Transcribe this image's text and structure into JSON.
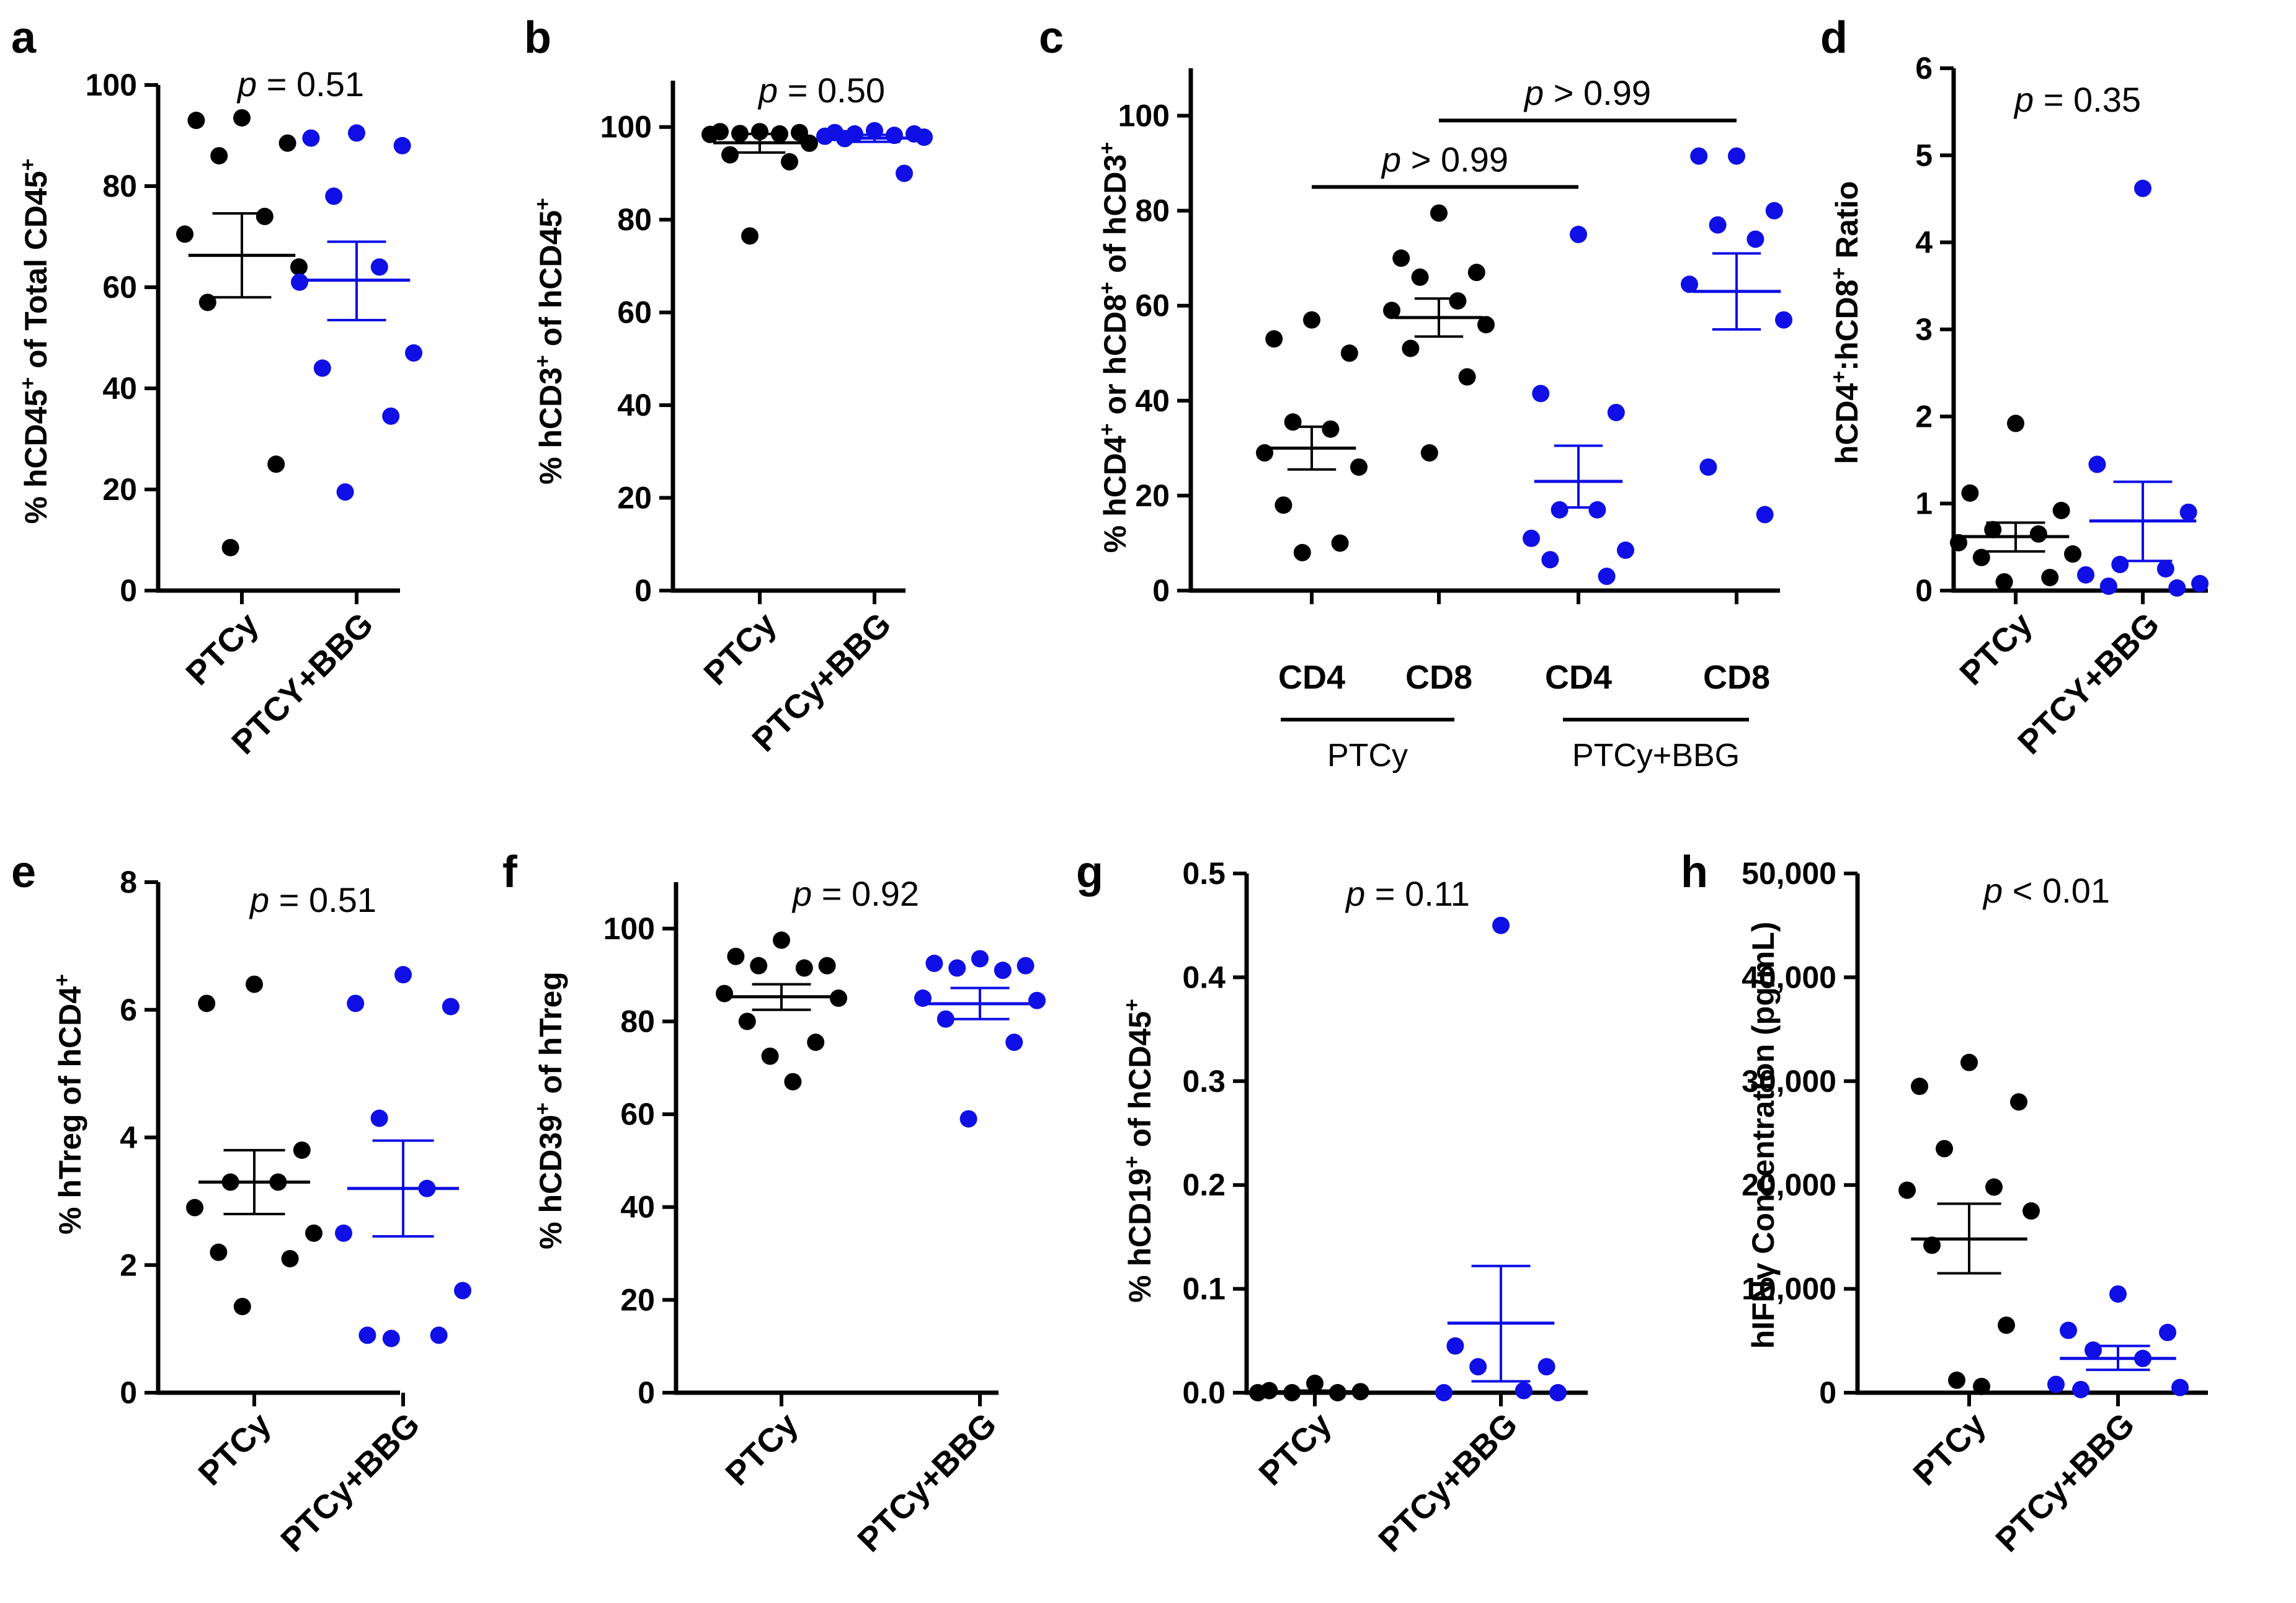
{
  "figure": {
    "background": "#ffffff"
  },
  "colors": {
    "ptcy": "#000000",
    "bbg": "#0f0fe6"
  },
  "chart_data": [
    {
      "panel": "a",
      "type": "scatter",
      "ylabel": "% hCD45",
      "ylabel_sup": "+",
      "ylabel_rest": " of Total CD45",
      "ylabel_sup2": "+",
      "ylim": [
        0,
        100
      ],
      "yticks": [
        0,
        20,
        40,
        60,
        80,
        100
      ],
      "categories": [
        "PTCy",
        "PTCY+BBG"
      ],
      "pvalue_label": "p",
      "pvalue_text": " = 0.51",
      "series": [
        {
          "name": "PTCy",
          "color": "#000000",
          "mean": 66.3,
          "sem_low": 58.0,
          "sem_high": 74.6,
          "values": [
            93.5,
            93.0,
            88.5,
            86.0,
            74.0,
            70.5,
            64.0,
            57.0,
            25.0,
            8.5
          ]
        },
        {
          "name": "PTCY+BBG",
          "color": "#0f0fe6",
          "mean": 61.4,
          "sem_low": 53.5,
          "sem_high": 69.0,
          "values": [
            90.5,
            89.5,
            88.0,
            78.0,
            64.0,
            61.0,
            47.0,
            44.0,
            34.5,
            19.5
          ]
        }
      ]
    },
    {
      "panel": "b",
      "type": "scatter",
      "ylabel": "% hCD3",
      "ylabel_sup": "+",
      "ylabel_rest": " of hCD45",
      "ylabel_sup2": "+",
      "ylim": [
        0,
        110
      ],
      "yticks": [
        0,
        20,
        40,
        60,
        80,
        100
      ],
      "categories": [
        "PTCy",
        "PTCy+BBG"
      ],
      "pvalue_label": "p",
      "pvalue_text": " = 0.50",
      "series": [
        {
          "name": "PTCy",
          "color": "#000000",
          "mean": 96.6,
          "sem_low": 94.5,
          "sem_high": 98.5,
          "values": [
            99.0,
            99.0,
            98.8,
            98.6,
            98.5,
            98.4,
            96.5,
            94.0,
            92.5,
            76.5
          ]
        },
        {
          "name": "PTCy+BBG",
          "color": "#0f0fe6",
          "mean": 97.6,
          "sem_low": 96.8,
          "sem_high": 98.3,
          "values": [
            99.2,
            98.8,
            98.5,
            98.5,
            98.2,
            98.0,
            97.8,
            97.5,
            90.0
          ]
        }
      ]
    },
    {
      "panel": "c",
      "type": "scatter",
      "ylabel": "% hCD4",
      "ylabel_sup": "+",
      "ylabel_rest": " or hCD8",
      "ylabel_sup2": "+",
      "ylabel_rest2": " of hCD3",
      "ylabel_sup3": "+",
      "ylim": [
        0,
        110
      ],
      "yticks": [
        0,
        20,
        40,
        60,
        80,
        100
      ],
      "categories": [
        "CD4",
        "CD8",
        "CD4",
        "CD8"
      ],
      "groups": [
        "PTCy",
        "PTCy+BBG"
      ],
      "comparisons": [
        {
          "label": "p",
          "text": " > 0.99",
          "y": 85
        },
        {
          "label": "p",
          "text": " > 0.99",
          "y": 99
        }
      ],
      "series": [
        {
          "name": "PTCy CD4",
          "color": "#000000",
          "mean": 30.0,
          "sem_low": 25.5,
          "sem_high": 34.5,
          "values": [
            57.0,
            53.0,
            50.0,
            35.5,
            34.0,
            29.0,
            26.0,
            18.0,
            10.0,
            8.0
          ]
        },
        {
          "name": "PTCy CD8",
          "color": "#000000",
          "mean": 57.5,
          "sem_low": 53.5,
          "sem_high": 61.5,
          "values": [
            79.5,
            70.0,
            67.0,
            66.0,
            61.0,
            59.0,
            56.0,
            51.0,
            45.0,
            29.0
          ]
        },
        {
          "name": "PTCy+BBG CD4",
          "color": "#0f0fe6",
          "mean": 23.0,
          "sem_low": 17.5,
          "sem_high": 30.5,
          "values": [
            75.0,
            41.5,
            37.5,
            17.0,
            17.0,
            11.0,
            8.5,
            6.5,
            3.0
          ]
        },
        {
          "name": "PTCy+BBG CD8",
          "color": "#0f0fe6",
          "mean": 63.0,
          "sem_low": 55.0,
          "sem_high": 71.0,
          "values": [
            91.5,
            91.5,
            80.0,
            77.0,
            74.0,
            64.5,
            57.0,
            26.0,
            16.0
          ]
        }
      ]
    },
    {
      "panel": "d",
      "type": "scatter",
      "ylabel": "hCD4",
      "ylabel_sup": "+",
      "ylabel_rest": ":hCD8",
      "ylabel_sup2": "+",
      "ylabel_rest2": " Ratio",
      "ylim": [
        0,
        6
      ],
      "yticks": [
        0,
        1,
        2,
        3,
        4,
        5,
        6
      ],
      "categories": [
        "PTCy",
        "PTCY+BBG"
      ],
      "pvalue_label": "p",
      "pvalue_text": " = 0.35",
      "series": [
        {
          "name": "PTCy",
          "color": "#000000",
          "mean": 0.62,
          "sem_low": 0.45,
          "sem_high": 0.78,
          "values": [
            1.92,
            1.12,
            0.92,
            0.7,
            0.65,
            0.55,
            0.42,
            0.38,
            0.15,
            0.1
          ]
        },
        {
          "name": "PTCY+BBG",
          "color": "#0f0fe6",
          "mean": 0.8,
          "sem_low": 0.34,
          "sem_high": 1.25,
          "values": [
            4.62,
            1.45,
            0.9,
            0.3,
            0.25,
            0.18,
            0.08,
            0.05,
            0.03
          ]
        }
      ]
    },
    {
      "panel": "e",
      "type": "scatter",
      "ylabel": "% hTreg of hCD4",
      "ylabel_sup": "+",
      "ylim": [
        0,
        8
      ],
      "yticks": [
        0,
        2,
        4,
        6,
        8
      ],
      "categories": [
        "PTCy",
        "PTCy+BBG"
      ],
      "pvalue_label": "p",
      "pvalue_text": " = 0.51",
      "series": [
        {
          "name": "PTCy",
          "color": "#000000",
          "mean": 3.3,
          "sem_low": 2.8,
          "sem_high": 3.8,
          "values": [
            6.4,
            6.1,
            3.8,
            3.3,
            3.3,
            2.9,
            2.5,
            2.2,
            2.1,
            1.35
          ]
        },
        {
          "name": "PTCy+BBG",
          "color": "#0f0fe6",
          "mean": 3.2,
          "sem_low": 2.45,
          "sem_high": 3.95,
          "values": [
            6.55,
            6.1,
            6.05,
            4.3,
            3.2,
            2.5,
            1.6,
            0.9,
            0.9,
            0.85
          ]
        }
      ]
    },
    {
      "panel": "f",
      "type": "scatter",
      "ylabel": "% hCD39",
      "ylabel_sup": "+",
      "ylabel_rest": " of hTreg",
      "ylim": [
        0,
        110
      ],
      "yticks": [
        0,
        20,
        40,
        60,
        80,
        100
      ],
      "categories": [
        "PTCy",
        "PTCy+BBG"
      ],
      "pvalue_label": "p",
      "pvalue_text": " = 0.92",
      "series": [
        {
          "name": "PTCy",
          "color": "#000000",
          "mean": 85.3,
          "sem_low": 82.5,
          "sem_high": 88.0,
          "values": [
            97.5,
            94.0,
            92.0,
            92.0,
            91.5,
            86.0,
            85.0,
            80.0,
            75.5,
            72.5,
            67.0
          ]
        },
        {
          "name": "PTCy+BBG",
          "color": "#0f0fe6",
          "mean": 83.8,
          "sem_low": 80.5,
          "sem_high": 87.2,
          "values": [
            93.5,
            92.5,
            92.0,
            91.5,
            91.0,
            85.0,
            84.5,
            80.5,
            75.5,
            59.0
          ]
        }
      ]
    },
    {
      "panel": "g",
      "type": "scatter",
      "ylabel": "% hCD19",
      "ylabel_sup": "+",
      "ylabel_rest": " of hCD45",
      "ylabel_sup2": "+",
      "ylim": [
        0,
        0.5
      ],
      "yticks": [
        0.0,
        0.1,
        0.2,
        0.3,
        0.4,
        0.5
      ],
      "categories": [
        "PTCy",
        "PTCy+BBG"
      ],
      "pvalue_label": "p",
      "pvalue_text": " = 0.11",
      "series": [
        {
          "name": "PTCy",
          "color": "#000000",
          "mean": 0.001,
          "sem_low": 0.0,
          "sem_high": 0.002,
          "values": [
            0.009,
            0.002,
            0.001,
            0.0,
            0.0,
            0.0
          ]
        },
        {
          "name": "PTCy+BBG",
          "color": "#0f0fe6",
          "mean": 0.067,
          "sem_low": 0.011,
          "sem_high": 0.122,
          "values": [
            0.45,
            0.045,
            0.025,
            0.025,
            0.002,
            0.0,
            0.0
          ]
        }
      ]
    },
    {
      "panel": "h",
      "type": "scatter",
      "ylabel": "hIFNγ Concentration (pg/mL)",
      "ylim": [
        0,
        50000
      ],
      "yticks": [
        0,
        10000,
        20000,
        30000,
        40000,
        50000
      ],
      "ytick_labels": [
        "0",
        "10,000",
        "20,000",
        "30,000",
        "40,000",
        "50,000"
      ],
      "categories": [
        "PTCy",
        "PTCy+BBG"
      ],
      "pvalue_label": "p",
      "pvalue_text": " < 0.01",
      "series": [
        {
          "name": "PTCy",
          "color": "#000000",
          "mean": 14800,
          "sem_low": 11500,
          "sem_high": 18200,
          "values": [
            31800,
            29500,
            28000,
            23500,
            19800,
            19500,
            17500,
            14200,
            6500,
            1200,
            600
          ]
        },
        {
          "name": "PTCy+BBG",
          "color": "#0f0fe6",
          "mean": 3300,
          "sem_low": 2200,
          "sem_high": 4500,
          "values": [
            9500,
            6000,
            5800,
            4100,
            3300,
            800,
            500,
            300
          ]
        }
      ]
    }
  ],
  "panels_layout_note": "geometry lives in script"
}
